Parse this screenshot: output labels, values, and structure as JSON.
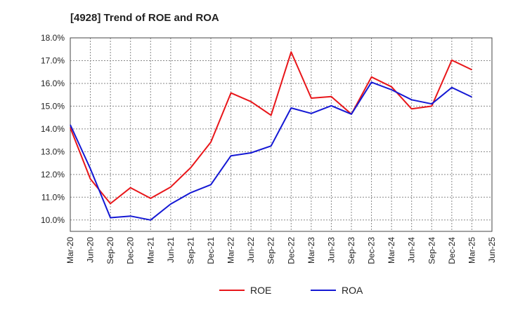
{
  "chart_data": {
    "type": "line",
    "title": "[4928]  Trend of ROE and ROA",
    "xlabel": "",
    "ylabel": "",
    "x": [
      "Mar-20",
      "Jun-20",
      "Sep-20",
      "Dec-20",
      "Mar-21",
      "Jun-21",
      "Sep-21",
      "Dec-21",
      "Mar-22",
      "Jun-22",
      "Sep-22",
      "Dec-22",
      "Mar-23",
      "Jun-23",
      "Sep-23",
      "Dec-23",
      "Mar-24",
      "Jun-24",
      "Sep-24",
      "Dec-24",
      "Mar-25",
      "Jun-25"
    ],
    "ylim": [
      9.5,
      18.0
    ],
    "yticks": [
      10.0,
      11.0,
      12.0,
      13.0,
      14.0,
      15.0,
      16.0,
      17.0,
      18.0
    ],
    "ytick_labels": [
      "10.0%",
      "11.0%",
      "12.0%",
      "13.0%",
      "14.0%",
      "15.0%",
      "16.0%",
      "17.0%",
      "18.0%"
    ],
    "grid": true,
    "legend_position": "bottom-center",
    "series": [
      {
        "name": "ROE",
        "color": "#e8161a",
        "values": [
          14.05,
          11.8,
          10.72,
          11.42,
          10.95,
          11.45,
          12.3,
          13.42,
          15.58,
          15.2,
          14.6,
          17.38,
          15.35,
          15.42,
          14.65,
          16.28,
          15.85,
          14.88,
          15.0,
          17.02,
          16.6,
          null
        ]
      },
      {
        "name": "ROA",
        "color": "#1418d4",
        "values": [
          14.18,
          12.25,
          10.1,
          10.17,
          10.0,
          10.7,
          11.2,
          11.55,
          12.82,
          12.95,
          13.25,
          14.92,
          14.68,
          15.02,
          14.65,
          16.05,
          15.72,
          15.28,
          15.1,
          15.82,
          15.4,
          null
        ]
      }
    ]
  }
}
